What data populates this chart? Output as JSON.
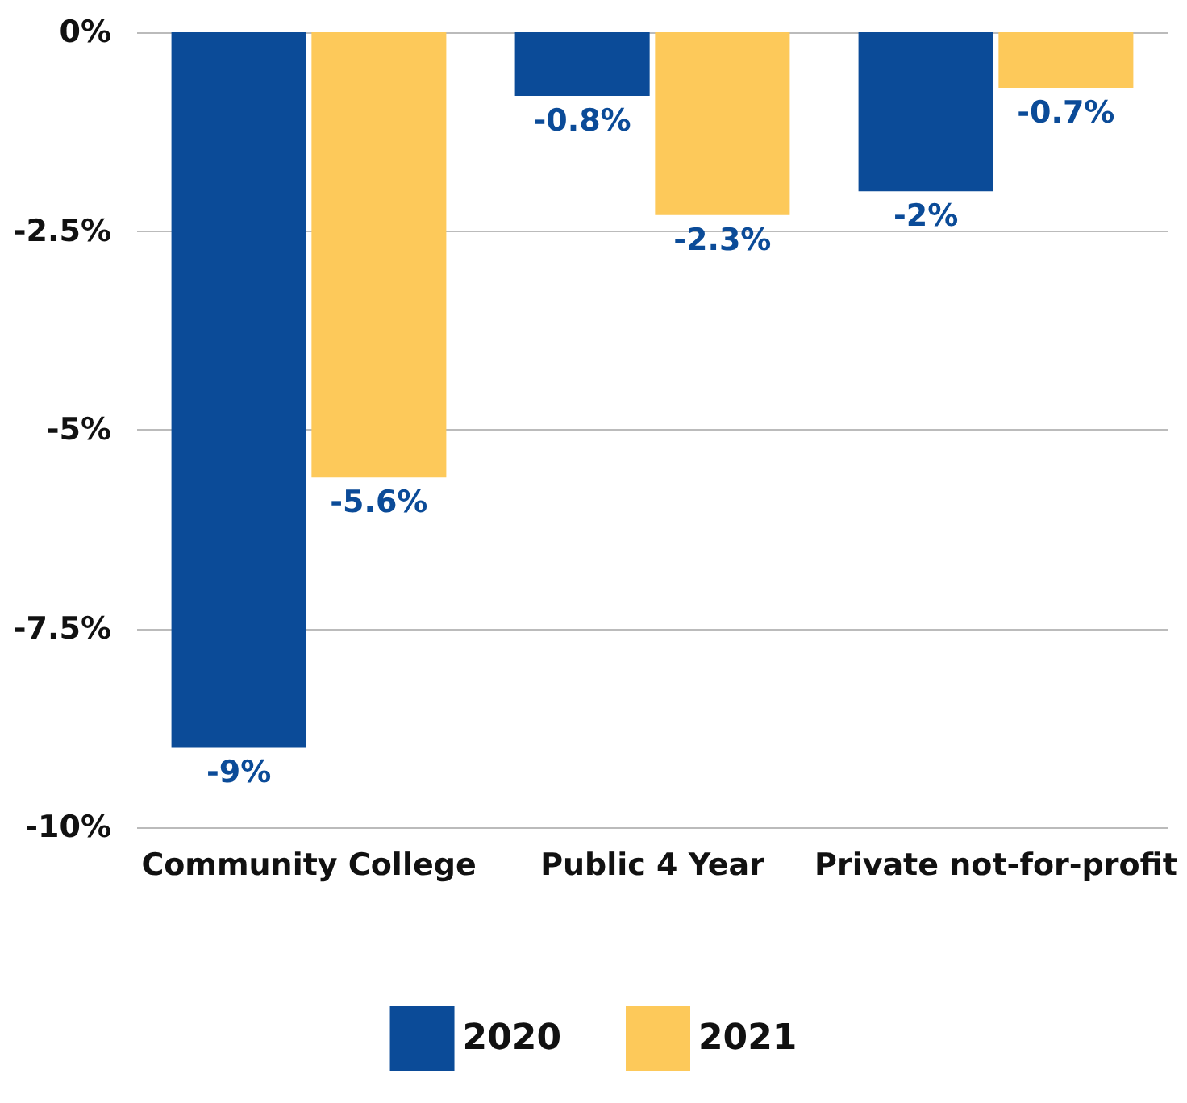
{
  "chart_data": {
    "type": "bar",
    "categories": [
      "Community College",
      "Public 4 Year",
      "Private not-for-profit"
    ],
    "series": [
      {
        "name": "2020",
        "color": "#0b4b98",
        "values": [
          -9,
          -0.8,
          -2
        ],
        "value_labels": [
          "-9%",
          "-0.8%",
          "-2%"
        ]
      },
      {
        "name": "2021",
        "color": "#fdc95a",
        "values": [
          -5.6,
          -2.3,
          -0.7
        ],
        "value_labels": [
          "-5.6%",
          "-2.3%",
          "-0.7%"
        ]
      }
    ],
    "ylim": [
      -10,
      0
    ],
    "yticks": [
      {
        "value": 0,
        "label": "0%"
      },
      {
        "value": -2.5,
        "label": "-2.5%"
      },
      {
        "value": -5,
        "label": "-5%"
      },
      {
        "value": -7.5,
        "label": "-7.5%"
      },
      {
        "value": -10,
        "label": "-10%"
      }
    ],
    "grid": "y",
    "legend": "bottom"
  }
}
